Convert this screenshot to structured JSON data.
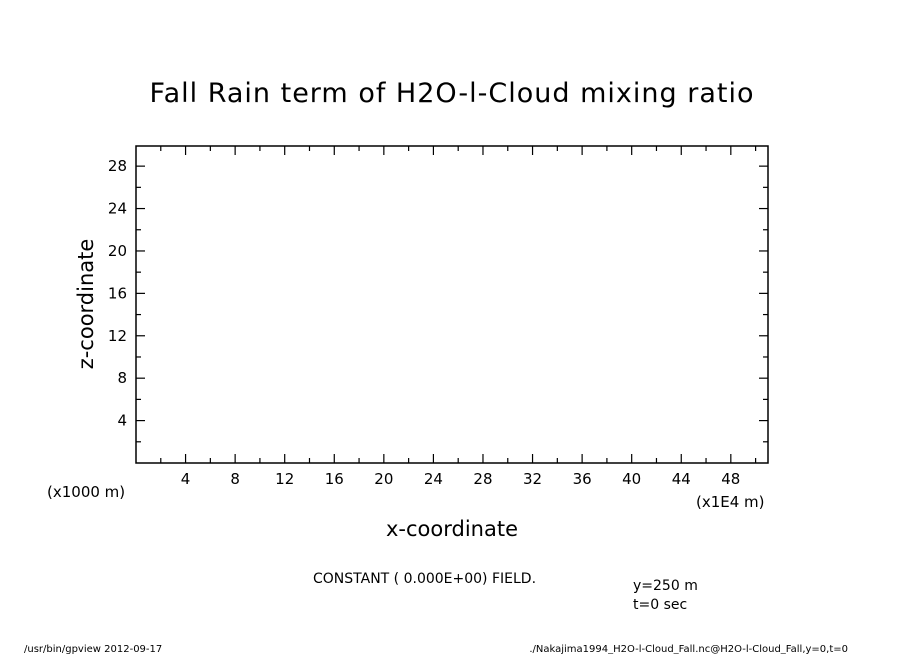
{
  "chart_data": {
    "type": "line",
    "title": "Fall Rain term of H2O-l-Cloud mixing ratio",
    "xlabel": "x-coordinate",
    "ylabel": "z-coordinate",
    "x_unit": "(x1E4 m)",
    "y_unit": "(x1000 m)",
    "xlim": [
      0,
      51
    ],
    "ylim": [
      0,
      29.9
    ],
    "x_ticks": [
      4,
      8,
      12,
      16,
      20,
      24,
      28,
      32,
      36,
      40,
      44,
      48
    ],
    "y_ticks": [
      4,
      8,
      12,
      16,
      20,
      24,
      28
    ],
    "x_minor_step": 2,
    "y_minor_step": 2,
    "grid": false,
    "series": [],
    "field_message": "CONSTANT ( 0.000E+00) FIELD.",
    "annotations": [
      "y=250 m",
      "t=0 sec"
    ]
  },
  "footer": {
    "left": "/usr/bin/gpview   2012-09-17",
    "right": "./Nakajima1994_H2O-l-Cloud_Fall.nc@H2O-l-Cloud_Fall,y=0,t=0"
  }
}
